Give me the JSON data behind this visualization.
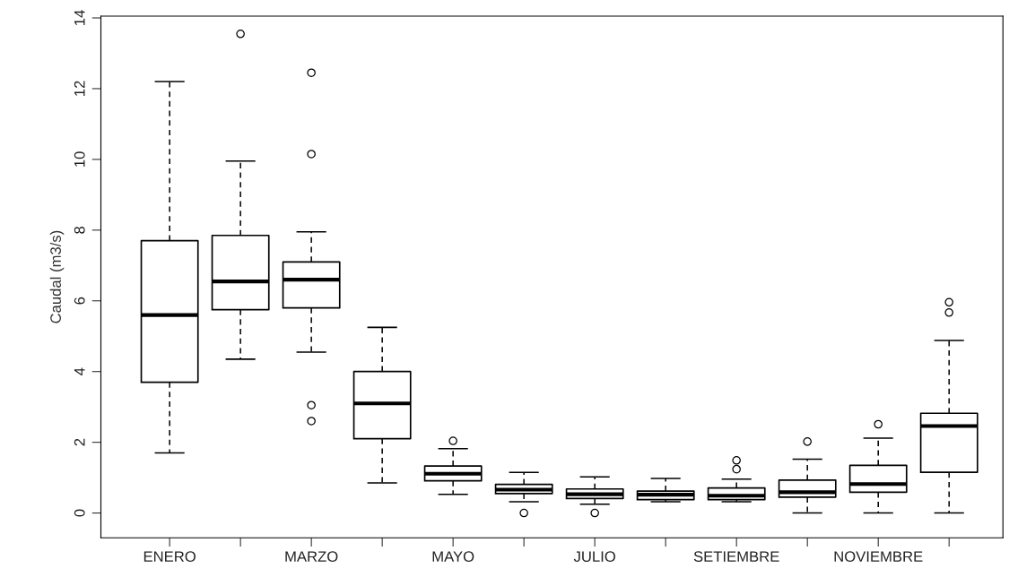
{
  "chart_data": {
    "type": "box",
    "ylabel": "Caudal (m3/s)",
    "categories": [
      "ENERO",
      null,
      "MARZO",
      null,
      "MAYO",
      null,
      "JULIO",
      null,
      "SETIEMBRE",
      null,
      "NOVIEMBRE",
      null
    ],
    "boxes": [
      {
        "low": 1.7,
        "q1": 3.7,
        "median": 5.6,
        "q3": 7.7,
        "high": 12.2
      },
      {
        "low": 4.35,
        "q1": 5.75,
        "median": 6.55,
        "q3": 7.85,
        "high": 9.95,
        "outliers": [
          13.55
        ]
      },
      {
        "low": 4.55,
        "q1": 5.8,
        "median": 6.6,
        "q3": 7.1,
        "high": 7.95,
        "outliers": [
          12.45,
          10.15,
          3.05,
          2.6
        ]
      },
      {
        "low": 0.85,
        "q1": 2.1,
        "median": 3.1,
        "q3": 4.0,
        "high": 5.25
      },
      {
        "low": 0.53,
        "q1": 0.91,
        "median": 1.11,
        "q3": 1.33,
        "high": 1.82,
        "outliers": [
          2.04
        ]
      },
      {
        "low": 0.32,
        "q1": 0.55,
        "median": 0.66,
        "q3": 0.81,
        "high": 1.15,
        "outliers": [
          0.0
        ]
      },
      {
        "low": 0.25,
        "q1": 0.41,
        "median": 0.53,
        "q3": 0.68,
        "high": 1.02,
        "outliers": [
          0.0
        ]
      },
      {
        "low": 0.32,
        "q1": 0.38,
        "median": 0.52,
        "q3": 0.62,
        "high": 0.98
      },
      {
        "low": 0.32,
        "q1": 0.38,
        "median": 0.49,
        "q3": 0.71,
        "high": 0.96,
        "outliers": [
          1.49,
          1.24
        ]
      },
      {
        "low": 0.0,
        "q1": 0.45,
        "median": 0.59,
        "q3": 0.93,
        "high": 1.52,
        "outliers": [
          2.02
        ]
      },
      {
        "low": 0.0,
        "q1": 0.59,
        "median": 0.82,
        "q3": 1.35,
        "high": 2.12,
        "outliers": [
          2.51
        ]
      },
      {
        "low": 0.0,
        "q1": 1.15,
        "median": 2.46,
        "q3": 2.82,
        "high": 4.88,
        "outliers": [
          5.96,
          5.67
        ]
      }
    ],
    "ylim": [
      -0.7,
      14.05
    ],
    "yticks": [
      0,
      2,
      4,
      6,
      8,
      10,
      12,
      14
    ],
    "grid": false
  }
}
